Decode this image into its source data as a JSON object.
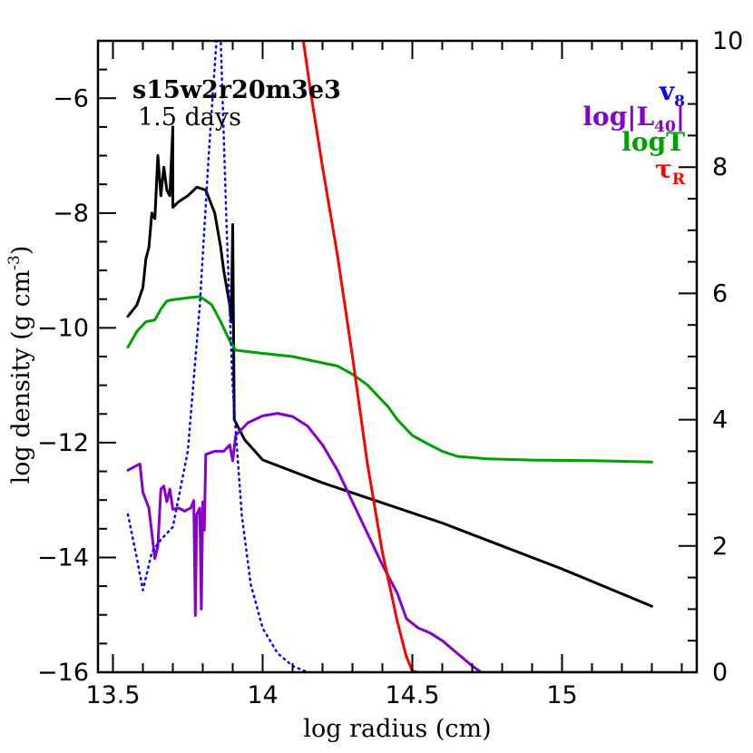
{
  "chart_data": {
    "type": "line",
    "xlabel": "log radius (cm)",
    "ylabel": "log density (g cm",
    "ylabel_sup": "-3",
    "ylabel_close": ")",
    "xlim": [
      13.45,
      15.45
    ],
    "ylim_left": [
      -16,
      -5
    ],
    "ylim_right": [
      0,
      10
    ],
    "x_ticks": [
      13.5,
      14,
      14.5,
      15
    ],
    "x_tick_labels": [
      "13.5",
      "14",
      "14.5",
      "15"
    ],
    "y_left_ticks": [
      -6,
      -8,
      -10,
      -12,
      -14,
      -16
    ],
    "y_left_tick_labels": [
      "−6",
      "−8",
      "−10",
      "−12",
      "−14",
      "−16"
    ],
    "y_right_ticks": [
      0,
      2,
      4,
      6,
      8,
      10
    ],
    "y_right_tick_labels": [
      "0",
      "2",
      "4",
      "6",
      "8",
      "10"
    ],
    "annotation_title": "s15w2r20m3e3",
    "annotation_subtitle": "1.5 days",
    "legend": [
      {
        "base": "v",
        "sub": "8",
        "color": "#0000ff"
      },
      {
        "base": "log|L",
        "sub": "40",
        "close": "|",
        "color": "#8800cc"
      },
      {
        "base": "logT",
        "sub": "",
        "color": "#00a000"
      },
      {
        "base": "τ",
        "sub": "R",
        "color": "#ff0000"
      }
    ],
    "series": [
      {
        "name": "density",
        "axis": "left",
        "color": "#000000",
        "style": "solid",
        "points": [
          [
            13.55,
            -9.8
          ],
          [
            13.58,
            -9.6
          ],
          [
            13.6,
            -9.3
          ],
          [
            13.61,
            -8.8
          ],
          [
            13.62,
            -8.6
          ],
          [
            13.63,
            -8.0
          ],
          [
            13.64,
            -8.1
          ],
          [
            13.65,
            -7.0
          ],
          [
            13.66,
            -7.7
          ],
          [
            13.67,
            -7.2
          ],
          [
            13.68,
            -7.6
          ],
          [
            13.69,
            -7.7
          ],
          [
            13.7,
            -6.5
          ],
          [
            13.7,
            -7.9
          ],
          [
            13.72,
            -7.8
          ],
          [
            13.75,
            -7.7
          ],
          [
            13.78,
            -7.55
          ],
          [
            13.81,
            -7.6
          ],
          [
            13.84,
            -8.0
          ],
          [
            13.86,
            -8.6
          ],
          [
            13.87,
            -9.0
          ],
          [
            13.88,
            -9.3
          ],
          [
            13.89,
            -9.6
          ],
          [
            13.895,
            -9.9
          ],
          [
            13.9,
            -8.2
          ],
          [
            13.905,
            -11.6
          ],
          [
            13.94,
            -11.95
          ],
          [
            14.0,
            -12.3
          ],
          [
            14.2,
            -12.7
          ],
          [
            14.4,
            -13.05
          ],
          [
            14.6,
            -13.4
          ],
          [
            14.8,
            -13.8
          ],
          [
            15.0,
            -14.2
          ],
          [
            15.3,
            -14.85
          ]
        ]
      },
      {
        "name": "logT",
        "axis": "right",
        "color": "#00a000",
        "style": "solid",
        "points": [
          [
            13.55,
            5.15
          ],
          [
            13.58,
            5.4
          ],
          [
            13.61,
            5.55
          ],
          [
            13.64,
            5.58
          ],
          [
            13.66,
            5.75
          ],
          [
            13.68,
            5.88
          ],
          [
            13.7,
            5.9
          ],
          [
            13.75,
            5.93
          ],
          [
            13.79,
            5.95
          ],
          [
            13.83,
            5.82
          ],
          [
            13.86,
            5.55
          ],
          [
            13.89,
            5.25
          ],
          [
            13.91,
            5.1
          ],
          [
            14.0,
            5.05
          ],
          [
            14.1,
            5.0
          ],
          [
            14.2,
            4.9
          ],
          [
            14.25,
            4.85
          ],
          [
            14.3,
            4.72
          ],
          [
            14.35,
            4.55
          ],
          [
            14.38,
            4.4
          ],
          [
            14.42,
            4.2
          ],
          [
            14.45,
            4.0
          ],
          [
            14.48,
            3.85
          ],
          [
            14.5,
            3.75
          ],
          [
            14.55,
            3.62
          ],
          [
            14.6,
            3.5
          ],
          [
            14.65,
            3.42
          ],
          [
            14.75,
            3.38
          ],
          [
            14.9,
            3.36
          ],
          [
            15.1,
            3.35
          ],
          [
            15.3,
            3.33
          ]
        ]
      },
      {
        "name": "log|L40|",
        "axis": "right",
        "color": "#8800cc",
        "style": "solid",
        "points": [
          [
            13.55,
            3.2
          ],
          [
            13.59,
            3.3
          ],
          [
            13.6,
            2.85
          ],
          [
            13.62,
            2.6
          ],
          [
            13.64,
            1.8
          ],
          [
            13.65,
            2.0
          ],
          [
            13.66,
            2.9
          ],
          [
            13.67,
            2.95
          ],
          [
            13.68,
            2.7
          ],
          [
            13.69,
            2.9
          ],
          [
            13.7,
            2.58
          ],
          [
            13.72,
            2.6
          ],
          [
            13.74,
            2.55
          ],
          [
            13.75,
            2.58
          ],
          [
            13.76,
            2.6
          ],
          [
            13.77,
            2.72
          ],
          [
            13.775,
            0.9
          ],
          [
            13.78,
            2.5
          ],
          [
            13.79,
            2.6
          ],
          [
            13.795,
            1.0
          ],
          [
            13.8,
            2.7
          ],
          [
            13.805,
            2.25
          ],
          [
            13.81,
            3.45
          ],
          [
            13.84,
            3.5
          ],
          [
            13.87,
            3.5
          ],
          [
            13.89,
            3.6
          ],
          [
            13.9,
            3.35
          ],
          [
            13.91,
            3.75
          ],
          [
            13.95,
            3.95
          ],
          [
            14.0,
            4.06
          ],
          [
            14.05,
            4.1
          ],
          [
            14.1,
            4.05
          ],
          [
            14.15,
            3.9
          ],
          [
            14.2,
            3.6
          ],
          [
            14.25,
            3.2
          ],
          [
            14.3,
            2.7
          ],
          [
            14.35,
            2.2
          ],
          [
            14.4,
            1.7
          ],
          [
            14.45,
            1.25
          ],
          [
            14.48,
            0.85
          ],
          [
            14.52,
            0.7
          ],
          [
            14.56,
            0.62
          ],
          [
            14.6,
            0.5
          ],
          [
            14.65,
            0.3
          ],
          [
            14.7,
            0.1
          ],
          [
            14.73,
            0.0
          ],
          [
            15.3,
            0.0
          ]
        ]
      },
      {
        "name": "v8",
        "axis": "right",
        "color": "#0000ff",
        "style": "dotted",
        "points": [
          [
            13.55,
            2.5
          ],
          [
            13.58,
            1.8
          ],
          [
            13.6,
            1.3
          ],
          [
            13.63,
            1.9
          ],
          [
            13.66,
            2.1
          ],
          [
            13.7,
            2.3
          ],
          [
            13.75,
            3.5
          ],
          [
            13.79,
            5.8
          ],
          [
            13.82,
            8.2
          ],
          [
            13.84,
            9.6
          ],
          [
            13.85,
            10.3
          ],
          [
            13.86,
            10.0
          ],
          [
            13.88,
            7.0
          ],
          [
            13.9,
            4.5
          ],
          [
            13.93,
            2.5
          ],
          [
            13.96,
            1.4
          ],
          [
            14.0,
            0.7
          ],
          [
            14.05,
            0.3
          ],
          [
            14.1,
            0.1
          ],
          [
            14.15,
            0.0
          ],
          [
            15.3,
            0.0
          ]
        ]
      },
      {
        "name": "tauR",
        "axis": "right",
        "color": "#ff0000",
        "style": "solid",
        "points": [
          [
            14.13,
            10.2
          ],
          [
            14.16,
            9.2
          ],
          [
            14.2,
            8.0
          ],
          [
            14.25,
            6.6
          ],
          [
            14.3,
            5.0
          ],
          [
            14.35,
            3.3
          ],
          [
            14.4,
            1.9
          ],
          [
            14.45,
            0.8
          ],
          [
            14.48,
            0.25
          ],
          [
            14.5,
            0.02
          ],
          [
            14.52,
            0.0
          ],
          [
            15.3,
            0.0
          ]
        ]
      }
    ]
  }
}
